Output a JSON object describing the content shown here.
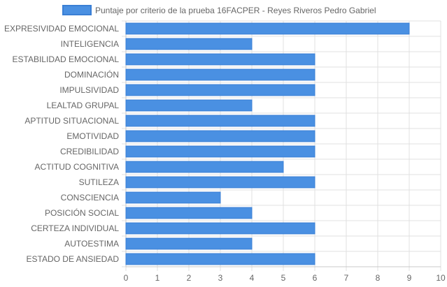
{
  "chart_data": {
    "type": "bar",
    "orientation": "horizontal",
    "legend_position": "top",
    "grid": true,
    "xlim": [
      0,
      10
    ],
    "x_ticks": [
      "0",
      "1",
      "2",
      "3",
      "4",
      "5",
      "6",
      "7",
      "8",
      "9",
      "10"
    ],
    "categories": [
      "EXPRESIVIDAD EMOCIONAL",
      "INTELIGENCIA",
      "ESTABILIDAD EMOCIONAL",
      "DOMINACIÓN",
      "IMPULSIVIDAD",
      "LEALTAD GRUPAL",
      "APTITUD SITUACIONAL",
      "EMOTIVIDAD",
      "CREDIBILIDAD",
      "ACTITUD COGNITIVA",
      "SUTILEZA",
      "CONSCIENCIA",
      "POSICIÓN SOCIAL",
      "CERTEZA INDIVIDUAL",
      "AUTOESTIMA",
      "ESTADO DE ANSIEDAD"
    ],
    "series": [
      {
        "name": "Puntaje por criterio de la prueba 16FACPER - Reyes Riveros Pedro Gabriel",
        "values": [
          9,
          4,
          6,
          6,
          6,
          4,
          6,
          6,
          6,
          5,
          6,
          3,
          4,
          6,
          4,
          6
        ],
        "color": "#4a90e2",
        "border_color": "#3a7fd5"
      }
    ],
    "grid_color": "#e0e0e0",
    "axis_color": "#c8c8c8"
  }
}
